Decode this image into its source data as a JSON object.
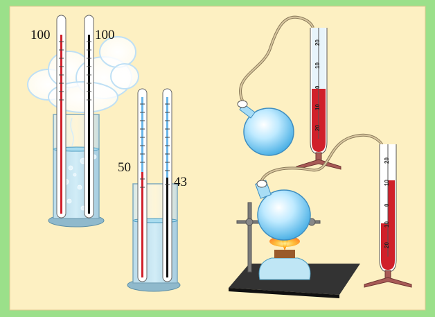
{
  "thermometers": {
    "boiling_left": "100",
    "boiling_right": "100",
    "warm_left": "50",
    "warm_right": "43"
  },
  "manometer_top_scale": [
    "20",
    "10",
    "0",
    "10",
    "20"
  ],
  "manometer_bottom_scale": [
    "20",
    "10",
    "0",
    "10",
    "20"
  ]
}
